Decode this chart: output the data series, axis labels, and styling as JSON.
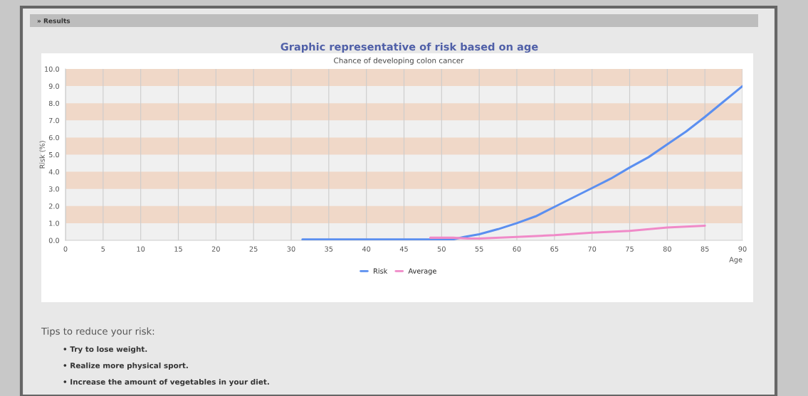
{
  "chart_data": {
    "type": "line",
    "title": "Graphic representative of risk based on age",
    "subtitle": "Chance of developing colon cancer",
    "xlabel": "Age",
    "ylabel": "Risk (%)",
    "series": [
      {
        "name": "Risk",
        "color": "#5b8ff0",
        "x": [
          31.5,
          40,
          45,
          50,
          51.5,
          53,
          55,
          57.5,
          60,
          62.5,
          65,
          67.5,
          70,
          72.5,
          75,
          77.5,
          80,
          82.5,
          85,
          87.5,
          90
        ],
        "values": [
          0.05,
          0.05,
          0.05,
          0.05,
          0.05,
          0.2,
          0.35,
          0.65,
          1.0,
          1.4,
          1.95,
          2.5,
          3.05,
          3.6,
          4.25,
          4.85,
          5.6,
          6.35,
          7.2,
          8.1,
          9.0
        ]
      },
      {
        "name": "Average",
        "color": "#f08ac8",
        "x": [
          48.5,
          51.5,
          53.5,
          55,
          60,
          65,
          70,
          75,
          80,
          85
        ],
        "values": [
          0.15,
          0.15,
          0.1,
          0.1,
          0.2,
          0.3,
          0.45,
          0.55,
          0.75,
          0.85
        ]
      }
    ],
    "xlim": [
      0,
      90
    ],
    "xticks": [
      0,
      5,
      10,
      15,
      20,
      25,
      30,
      35,
      40,
      45,
      50,
      55,
      60,
      65,
      70,
      75,
      80,
      85,
      90
    ],
    "ylim": [
      0,
      10
    ],
    "yticks": [
      {
        "value": 0,
        "label": "0.0"
      },
      {
        "value": 1,
        "label": "1.0"
      },
      {
        "value": 2,
        "label": "2.0"
      },
      {
        "value": 3,
        "label": "3.0"
      },
      {
        "value": 4,
        "label": "4.0"
      },
      {
        "value": 5,
        "label": "5.0"
      },
      {
        "value": 6,
        "label": "6.0"
      },
      {
        "value": 7,
        "label": "7.0"
      },
      {
        "value": 8,
        "label": "8.0"
      },
      {
        "value": 9,
        "label": "9.0"
      },
      {
        "value": 10,
        "label": "10.0"
      }
    ],
    "bands": [
      {
        "axis": "y",
        "from": 1,
        "to": 2,
        "color": "#f0d8c8"
      },
      {
        "axis": "y",
        "from": 3,
        "to": 4,
        "color": "#f0d8c8"
      },
      {
        "axis": "y",
        "from": 5,
        "to": 6,
        "color": "#f0d8c8"
      },
      {
        "axis": "y",
        "from": 7,
        "to": 8,
        "color": "#f0d8c8"
      },
      {
        "axis": "y",
        "from": 9,
        "to": 10,
        "color": "#f0d8c8"
      }
    ],
    "grid": "x",
    "legend": "bottom",
    "marker": "none",
    "line_style": "solid",
    "annotations": [
      "» Results",
      "Tips to reduce your risk:",
      "• Try to lose weight.",
      "• Realize more physical sport.",
      "• Increase the amount of vegetables in your diet."
    ]
  }
}
